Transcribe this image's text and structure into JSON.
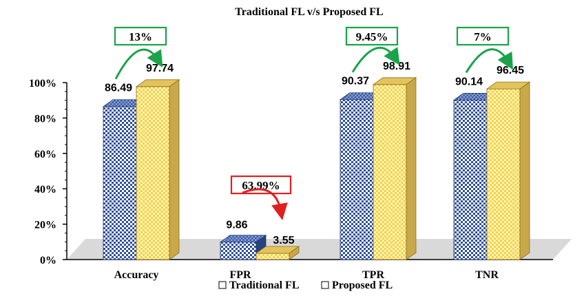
{
  "chart_data": {
    "type": "bar",
    "title": "Traditional FL v/s Proposed FL",
    "categories": [
      "Accuracy",
      "FPR",
      "TPR",
      "TNR"
    ],
    "series": [
      {
        "name": "Traditional FL",
        "values": [
          86.49,
          9.86,
          90.37,
          90.14
        ]
      },
      {
        "name": "Proposed FL",
        "values": [
          97.74,
          3.55,
          98.91,
          96.45
        ]
      }
    ],
    "value_labels": [
      [
        "86.49",
        "97.74"
      ],
      [
        "9.86",
        "3.55"
      ],
      [
        "90.37",
        "98.91"
      ],
      [
        "90.14",
        "96.45"
      ]
    ],
    "changes": [
      "13%",
      "63.99%",
      "9.45%",
      "7%"
    ],
    "change_status": [
      "increase",
      "decrease",
      "increase",
      "increase"
    ],
    "ylim": [
      0,
      100
    ],
    "yticks": [
      "0%",
      "20%",
      "40%",
      "60%",
      "80%",
      "100%"
    ],
    "legend_position": "bottom",
    "colors": {
      "traditional": "#2f4f9a",
      "proposed": "#f6d85a",
      "increase": "#1aa34a",
      "decrease": "#e02020",
      "floor": "#d9d9d9"
    }
  }
}
